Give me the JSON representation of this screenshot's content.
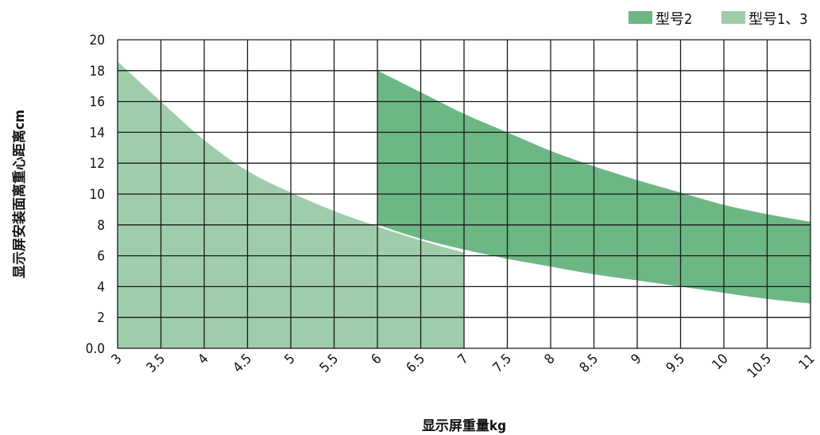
{
  "chart_data": {
    "type": "area",
    "title": "",
    "xlabel": "显示屏重量kg",
    "ylabel": "显示屏安装面离重心距离cm",
    "xlim": [
      3,
      11
    ],
    "ylim": [
      0,
      20
    ],
    "x_ticks": [
      "3",
      "3.5",
      "4",
      "4.5",
      "5",
      "5.5",
      "6",
      "6.5",
      "7",
      "7.5",
      "8",
      "8.5",
      "9",
      "9.5",
      "10",
      "10.5",
      "11"
    ],
    "y_ticks": [
      "0.0",
      "2",
      "4",
      "6",
      "8",
      "10",
      "12",
      "14",
      "16",
      "18",
      "20"
    ],
    "grid": true,
    "legend_position": "top-right",
    "series": [
      {
        "name": "型号2",
        "color": "#6db785",
        "upper": [
          [
            6,
            18
          ],
          [
            6.5,
            16.6
          ],
          [
            7,
            15.2
          ],
          [
            7.5,
            14
          ],
          [
            8,
            12.8
          ],
          [
            8.5,
            11.8
          ],
          [
            9,
            10.9
          ],
          [
            9.5,
            10.1
          ],
          [
            10,
            9.3
          ],
          [
            10.5,
            8.7
          ],
          [
            11,
            8.2
          ]
        ],
        "lower": [
          [
            6,
            8.0
          ],
          [
            6.5,
            7.1
          ],
          [
            7,
            6.4
          ],
          [
            7.5,
            5.8
          ],
          [
            8,
            5.3
          ],
          [
            8.5,
            4.8
          ],
          [
            9,
            4.4
          ],
          [
            9.5,
            4.0
          ],
          [
            10,
            3.6
          ],
          [
            10.5,
            3.2
          ],
          [
            11,
            2.9
          ]
        ]
      },
      {
        "name": "型号1、3",
        "color": "#9fcdab",
        "upper": [
          [
            3,
            18.6
          ],
          [
            3.5,
            16
          ],
          [
            4,
            13.5
          ],
          [
            4.5,
            11.5
          ],
          [
            5,
            10.1
          ],
          [
            5.5,
            8.9
          ],
          [
            6,
            7.9
          ],
          [
            6.5,
            7.0
          ],
          [
            7,
            6.2
          ]
        ],
        "lower": [
          [
            3,
            0
          ],
          [
            7,
            0
          ]
        ]
      }
    ]
  }
}
